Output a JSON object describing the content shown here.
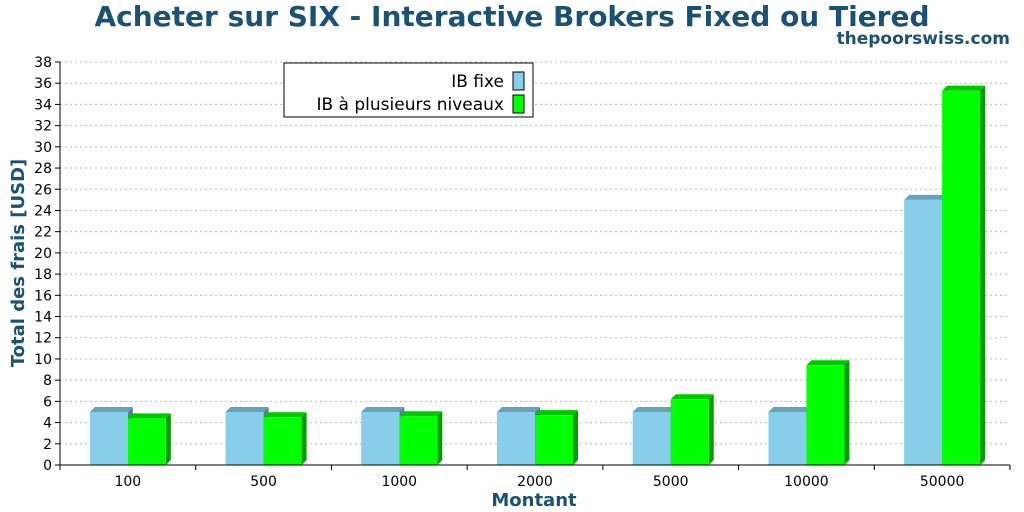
{
  "chart_data": {
    "type": "bar",
    "title": "Acheter sur SIX - Interactive Brokers Fixed ou Tiered",
    "subtitle": "thepoorswiss.com",
    "xlabel": "Montant",
    "ylabel": "Total des frais [USD]",
    "categories": [
      "100",
      "500",
      "1000",
      "2000",
      "5000",
      "10000",
      "50000"
    ],
    "series": [
      {
        "name": "IB fixe",
        "values": [
          5.0,
          5.0,
          5.0,
          5.0,
          5.0,
          5.0,
          25.0
        ],
        "color": "#87ceeb"
      },
      {
        "name": "IB à plusieurs niveaux",
        "values": [
          4.4,
          4.5,
          4.6,
          4.7,
          6.2,
          9.4,
          35.3
        ],
        "color": "#00ff00"
      }
    ],
    "ylim": [
      0,
      38
    ],
    "yticks": [
      0,
      2,
      4,
      6,
      8,
      10,
      12,
      14,
      16,
      18,
      20,
      22,
      24,
      26,
      28,
      30,
      32,
      34,
      36,
      38
    ],
    "grid": true,
    "legend_position": "top-left"
  }
}
